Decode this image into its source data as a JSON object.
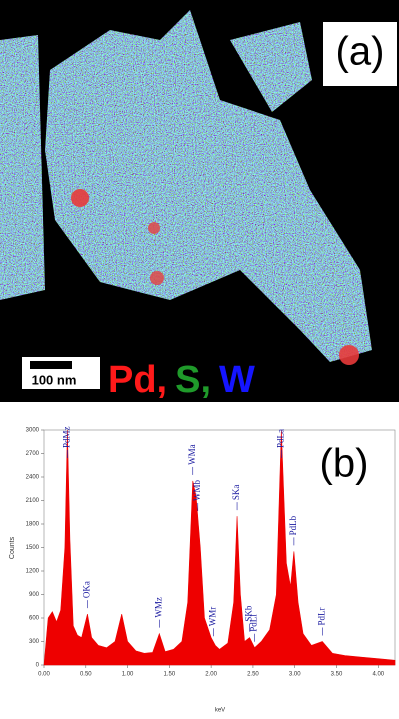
{
  "panel_a": {
    "label": "(a)",
    "scale_bar": "100 nm",
    "elements": [
      {
        "text": "Pd,",
        "color": "#ff1a1a"
      },
      {
        "text": "S,",
        "color": "#1f9a2a"
      },
      {
        "text": "W",
        "color": "#1515ff"
      }
    ]
  },
  "chart_data": {
    "type": "area",
    "panel_label": "(b)",
    "y_label": "Counts",
    "x_label": "keV",
    "color": "#ee0000",
    "x": [
      0.0,
      0.05,
      0.1,
      0.15,
      0.2,
      0.25,
      0.28,
      0.31,
      0.35,
      0.4,
      0.45,
      0.52,
      0.57,
      0.65,
      0.75,
      0.85,
      0.93,
      1.0,
      1.1,
      1.2,
      1.3,
      1.38,
      1.45,
      1.55,
      1.65,
      1.72,
      1.78,
      1.82,
      1.87,
      1.92,
      2.0,
      2.05,
      2.1,
      2.2,
      2.27,
      2.31,
      2.35,
      2.4,
      2.46,
      2.52,
      2.6,
      2.7,
      2.78,
      2.84,
      2.9,
      2.95,
      2.99,
      3.04,
      3.1,
      3.2,
      3.33,
      3.45,
      3.6,
      3.8,
      4.0,
      4.2
    ],
    "values": [
      0,
      600,
      680,
      550,
      700,
      1500,
      3000,
      1600,
      500,
      380,
      350,
      650,
      350,
      250,
      220,
      300,
      650,
      300,
      180,
      150,
      160,
      400,
      170,
      200,
      300,
      800,
      2350,
      2150,
      1500,
      600,
      350,
      250,
      200,
      280,
      800,
      1900,
      900,
      300,
      350,
      220,
      300,
      450,
      900,
      3000,
      1300,
      1000,
      1450,
      800,
      400,
      250,
      300,
      150,
      120,
      100,
      80,
      60
    ],
    "annotations": [
      {
        "text": "PdMz",
        "x": 0.28
      },
      {
        "text": "OKa",
        "x": 0.52
      },
      {
        "text": "WMz",
        "x": 1.38
      },
      {
        "text": "WMa",
        "x": 1.78
      },
      {
        "text": "WMb",
        "x": 1.84
      },
      {
        "text": "WMr",
        "x": 2.03
      },
      {
        "text": "SKa",
        "x": 2.31
      },
      {
        "text": "SKb",
        "x": 2.46
      },
      {
        "text": "PdLl",
        "x": 2.52
      },
      {
        "text": "PdLa",
        "x": 2.84
      },
      {
        "text": "PdLb",
        "x": 2.99
      },
      {
        "text": "PdLr",
        "x": 3.33
      }
    ],
    "xlim": [
      0,
      4.2
    ],
    "ylim": [
      0,
      3000
    ],
    "xticks": [
      {
        "value": 0,
        "label": "0.00"
      },
      {
        "value": 0.5,
        "label": "0.50"
      },
      {
        "value": 1,
        "label": "1.00"
      },
      {
        "value": 1.5,
        "label": "1.50"
      },
      {
        "value": 2,
        "label": "2.00"
      },
      {
        "value": 2.5,
        "label": "2.50"
      },
      {
        "value": 3,
        "label": "3.00"
      },
      {
        "value": 3.5,
        "label": "3.50"
      },
      {
        "value": 4,
        "label": "4.00"
      }
    ],
    "yticks": [
      0,
      300,
      600,
      900,
      1200,
      1500,
      1800,
      2100,
      2400,
      2700,
      3000
    ]
  }
}
